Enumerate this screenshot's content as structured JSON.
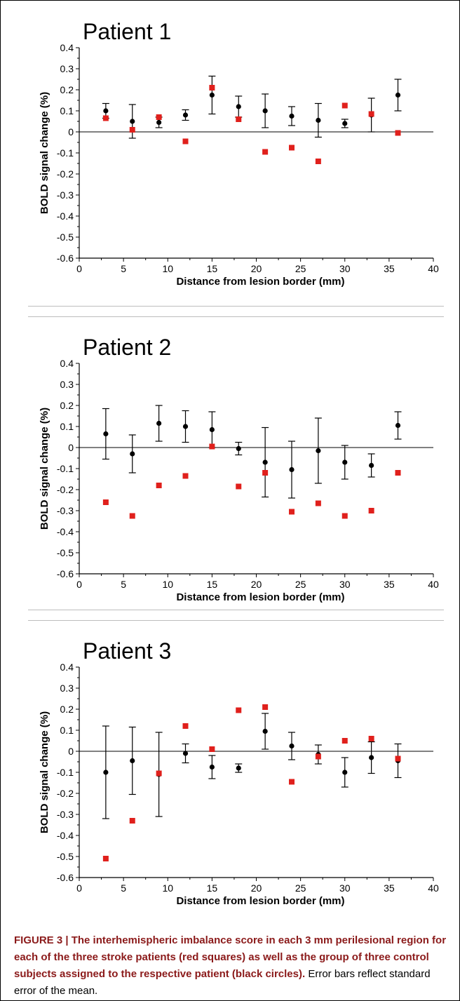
{
  "chart_data": [
    {
      "type": "scatter",
      "title": "Patient 1",
      "xlabel": "Distance from lesion border (mm)",
      "ylabel": "BOLD signal change (%)",
      "xlim": [
        0,
        40
      ],
      "ylim": [
        -0.6,
        0.4
      ],
      "xticks": [
        0,
        5,
        10,
        15,
        20,
        25,
        30,
        35,
        40
      ],
      "yticks": [
        -0.6,
        -0.5,
        -0.4,
        -0.3,
        -0.2,
        -0.1,
        0,
        0.1,
        0.2,
        0.3,
        0.4
      ],
      "grid": false,
      "series": [
        {
          "marker": "circle",
          "color": "#000000",
          "x": [
            3,
            6,
            9,
            12,
            15,
            18,
            21,
            24,
            27,
            30,
            33,
            36
          ],
          "y": [
            0.1,
            0.05,
            0.045,
            0.08,
            0.175,
            0.12,
            0.1,
            0.075,
            0.055,
            0.04,
            0.08,
            0.175
          ],
          "err": [
            0.035,
            0.08,
            0.025,
            0.025,
            0.09,
            0.05,
            0.08,
            0.045,
            0.08,
            0.02,
            0.08,
            0.075
          ]
        },
        {
          "marker": "square",
          "color": "#e0201c",
          "x": [
            3,
            6,
            9,
            12,
            15,
            18,
            21,
            24,
            27,
            30,
            33,
            36
          ],
          "y": [
            0.065,
            0.01,
            0.07,
            -0.045,
            0.21,
            0.06,
            -0.095,
            -0.075,
            -0.14,
            0.125,
            0.085,
            -0.005
          ]
        }
      ]
    },
    {
      "type": "scatter",
      "title": "Patient 2",
      "xlabel": "Distance from lesion border (mm)",
      "ylabel": "BOLD signal change (%)",
      "xlim": [
        0,
        40
      ],
      "ylim": [
        -0.6,
        0.4
      ],
      "xticks": [
        0,
        5,
        10,
        15,
        20,
        25,
        30,
        35,
        40
      ],
      "yticks": [
        -0.6,
        -0.5,
        -0.4,
        -0.3,
        -0.2,
        -0.1,
        0,
        0.1,
        0.2,
        0.3,
        0.4
      ],
      "grid": false,
      "series": [
        {
          "marker": "circle",
          "color": "#000000",
          "x": [
            3,
            6,
            9,
            12,
            15,
            18,
            21,
            24,
            27,
            30,
            33,
            36
          ],
          "y": [
            0.065,
            -0.03,
            0.115,
            0.1,
            0.085,
            -0.005,
            -0.07,
            -0.105,
            -0.015,
            -0.07,
            -0.085,
            0.105
          ],
          "err": [
            0.12,
            0.09,
            0.085,
            0.075,
            0.085,
            0.03,
            0.165,
            0.135,
            0.155,
            0.08,
            0.055,
            0.065
          ]
        },
        {
          "marker": "square",
          "color": "#e0201c",
          "x": [
            3,
            6,
            9,
            12,
            15,
            18,
            21,
            24,
            27,
            30,
            33,
            36
          ],
          "y": [
            -0.26,
            -0.325,
            -0.18,
            -0.135,
            0.005,
            -0.185,
            -0.12,
            -0.305,
            -0.265,
            -0.325,
            -0.3,
            -0.12
          ]
        }
      ]
    },
    {
      "type": "scatter",
      "title": "Patient 3",
      "xlabel": "Distance from lesion border (mm)",
      "ylabel": "BOLD signal change (%)",
      "xlim": [
        0,
        40
      ],
      "ylim": [
        -0.6,
        0.4
      ],
      "xticks": [
        0,
        5,
        10,
        15,
        20,
        25,
        30,
        35,
        40
      ],
      "yticks": [
        -0.6,
        -0.5,
        -0.4,
        -0.3,
        -0.2,
        -0.1,
        0,
        0.1,
        0.2,
        0.3,
        0.4
      ],
      "grid": false,
      "series": [
        {
          "marker": "circle",
          "color": "#000000",
          "x": [
            3,
            6,
            9,
            12,
            15,
            18,
            21,
            24,
            27,
            30,
            33,
            36
          ],
          "y": [
            -0.1,
            -0.045,
            -0.11,
            -0.01,
            -0.075,
            -0.08,
            0.095,
            0.025,
            -0.015,
            -0.1,
            -0.03,
            -0.045
          ],
          "err": [
            0.22,
            0.16,
            0.2,
            0.045,
            0.055,
            0.02,
            0.085,
            0.065,
            0.045,
            0.07,
            0.075,
            0.08
          ]
        },
        {
          "marker": "square",
          "color": "#e0201c",
          "x": [
            3,
            6,
            9,
            12,
            15,
            18,
            21,
            24,
            27,
            30,
            33,
            36
          ],
          "y": [
            -0.51,
            -0.33,
            -0.105,
            0.12,
            0.01,
            0.195,
            0.21,
            -0.145,
            -0.025,
            0.05,
            0.06,
            -0.035
          ]
        }
      ]
    }
  ],
  "caption": {
    "bold": "FIGURE 3 | The interhemispheric imbalance score in each 3 mm perilesional region for each of the three stroke patients (red squares) as well as the group of three control subjects assigned to the respective patient (black circles).",
    "text": " Error bars reflect standard error of the mean."
  }
}
